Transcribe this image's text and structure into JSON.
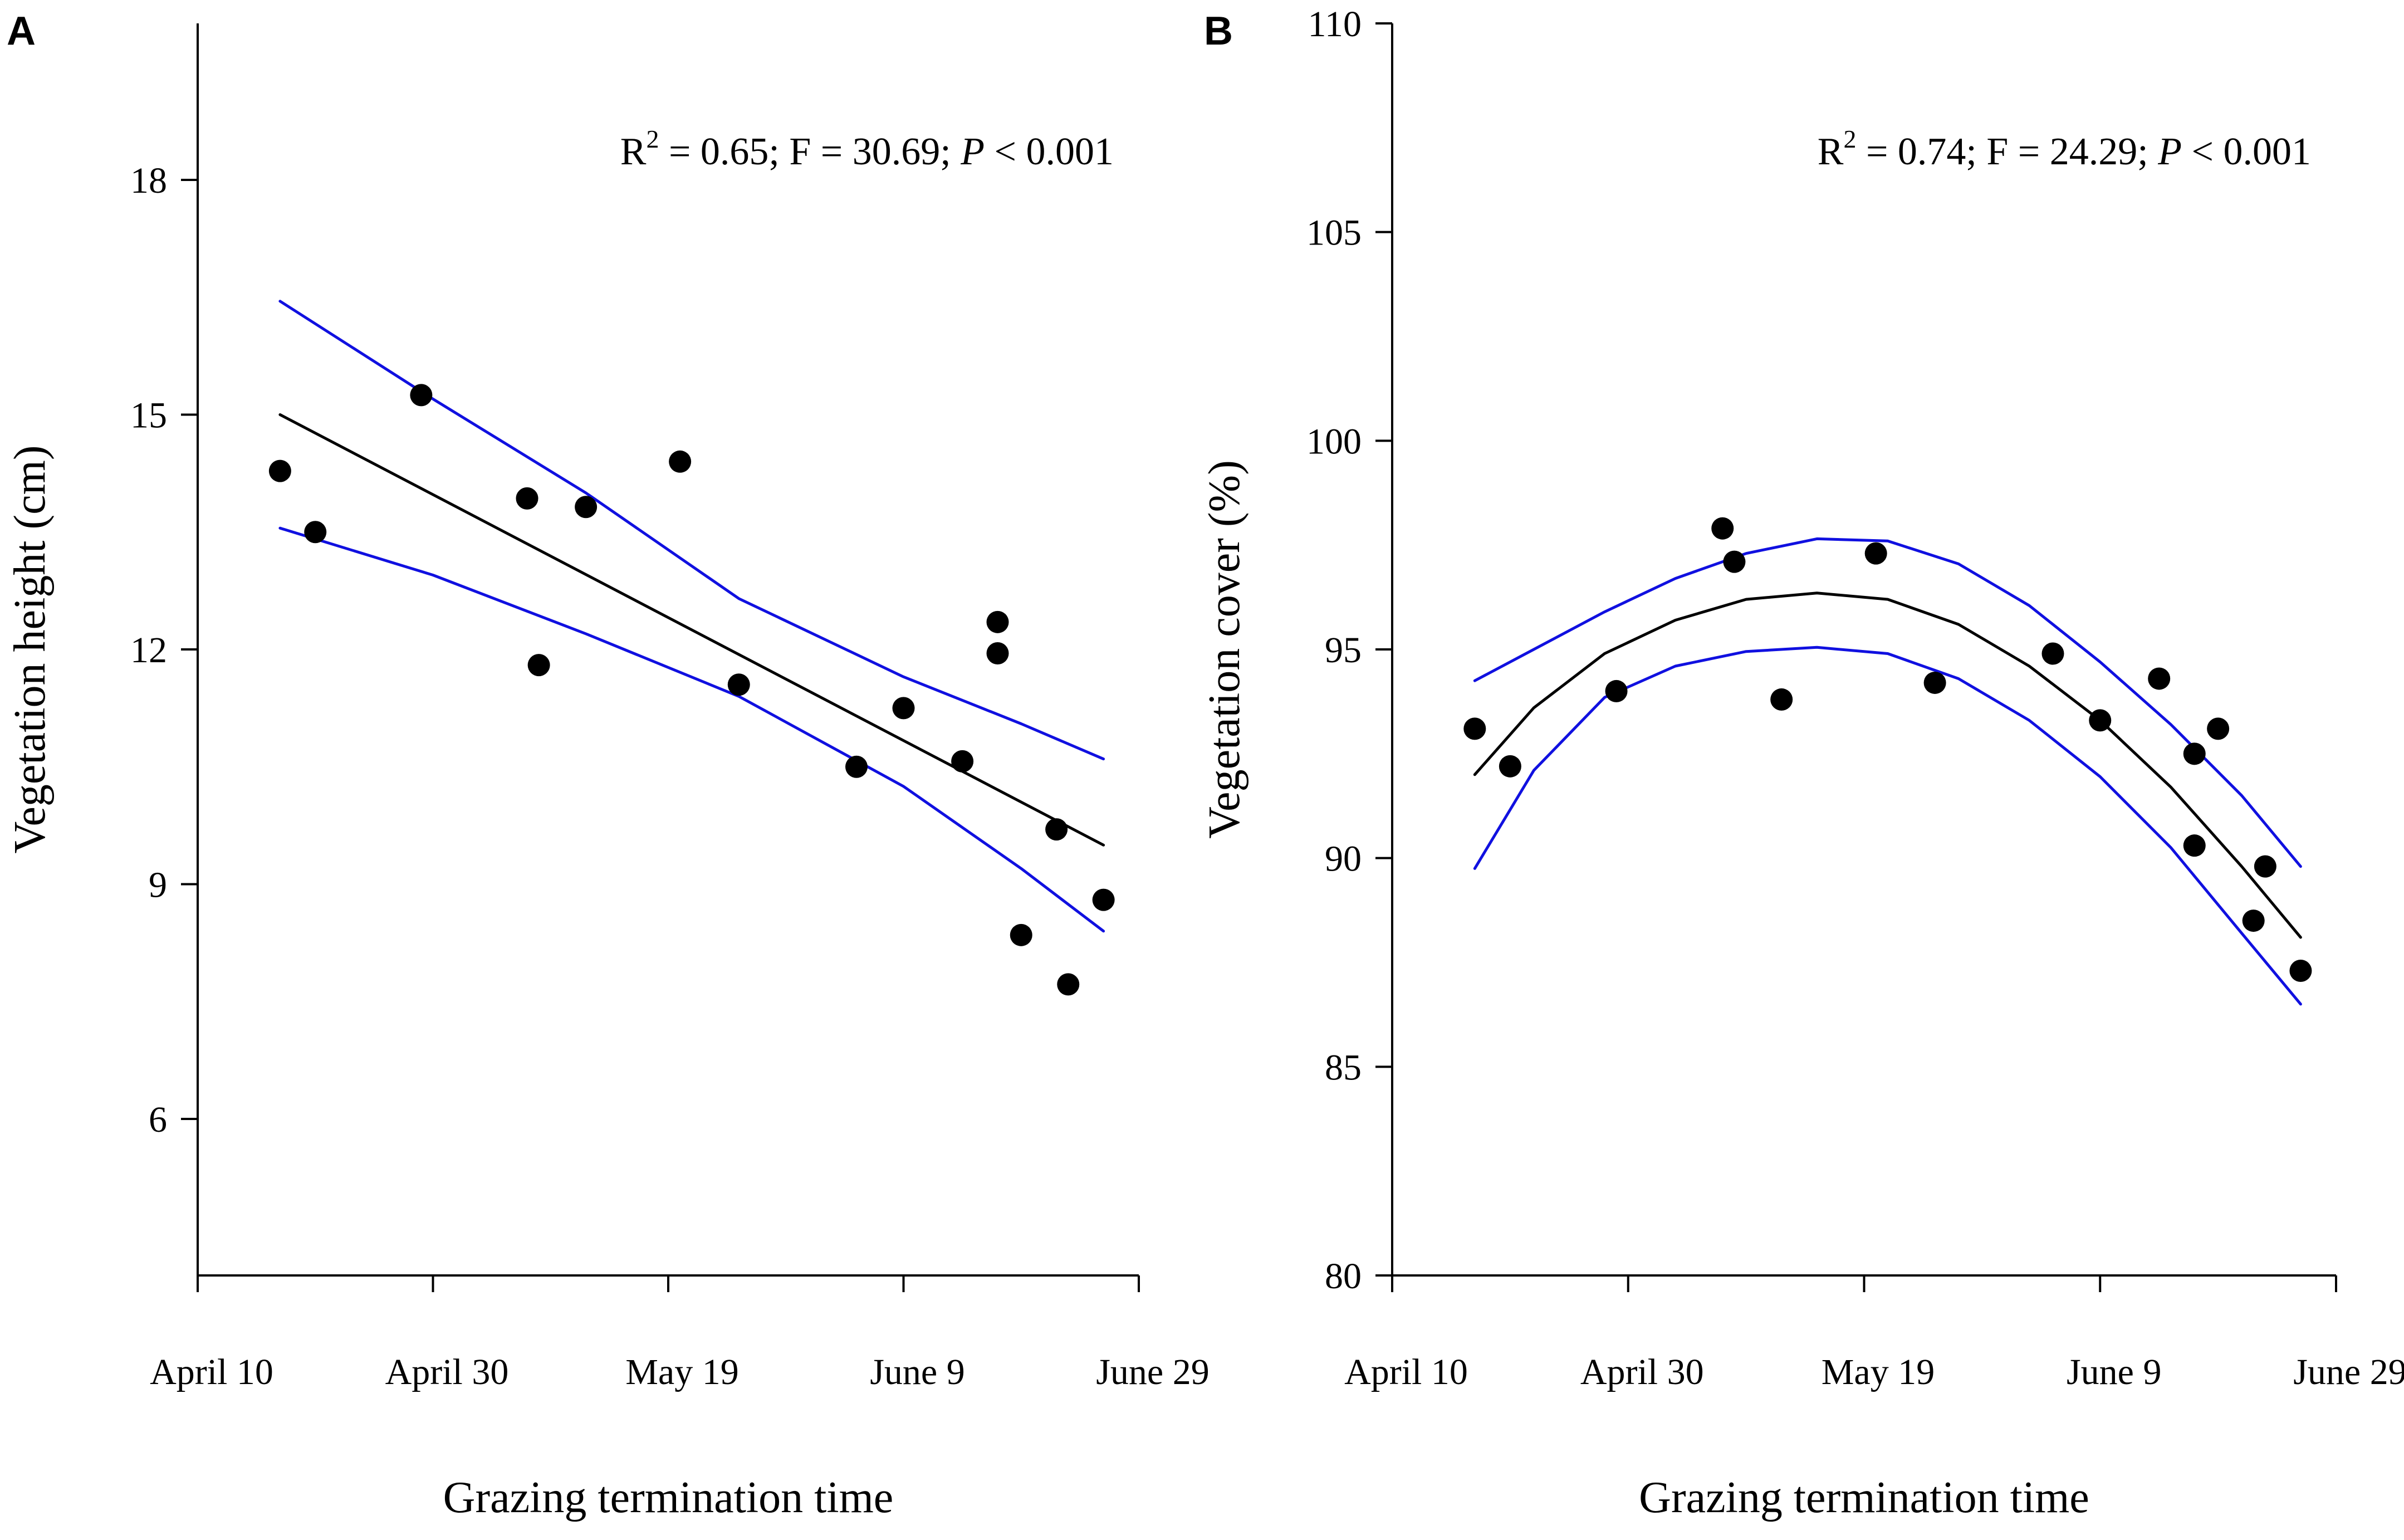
{
  "chart_data": [
    {
      "type": "scatter",
      "panel_label": "A",
      "xlabel": "Grazing termination time",
      "ylabel": "Vegetation height (cm)",
      "x_ticks": [
        {
          "label": "April 10",
          "value": 0
        },
        {
          "label": "April 30",
          "value": 20
        },
        {
          "label": "May 19",
          "value": 40
        },
        {
          "label": "June 9",
          "value": 60
        },
        {
          "label": "June 29",
          "value": 80
        }
      ],
      "xlim": [
        0,
        80
      ],
      "y_ticks": [
        6,
        9,
        12,
        15,
        18
      ],
      "ylim": [
        4,
        20
      ],
      "stats": {
        "r2_label": "R",
        "r2_sup": "2",
        "r2_rest": " = 0.65; F = 30.69; ",
        "p_label": "P",
        "p_rest": " < 0.001"
      },
      "points": [
        {
          "x": 7,
          "y": 14.28
        },
        {
          "x": 10,
          "y": 13.5
        },
        {
          "x": 19,
          "y": 15.25
        },
        {
          "x": 28,
          "y": 13.93
        },
        {
          "x": 29,
          "y": 11.8
        },
        {
          "x": 33,
          "y": 13.82
        },
        {
          "x": 41,
          "y": 14.4
        },
        {
          "x": 46,
          "y": 11.55
        },
        {
          "x": 56,
          "y": 10.5
        },
        {
          "x": 60,
          "y": 11.25
        },
        {
          "x": 65,
          "y": 10.57
        },
        {
          "x": 68,
          "y": 12.35
        },
        {
          "x": 68,
          "y": 11.95
        },
        {
          "x": 70,
          "y": 8.35
        },
        {
          "x": 73,
          "y": 9.7
        },
        {
          "x": 74,
          "y": 7.72
        },
        {
          "x": 77,
          "y": 8.8
        }
      ],
      "fit": {
        "x": [
          7,
          77
        ],
        "y": [
          15.0,
          9.5
        ]
      },
      "ci_upper": {
        "x": [
          7,
          20,
          33,
          46,
          60,
          70,
          77
        ],
        "y": [
          16.45,
          15.2,
          14.0,
          12.65,
          11.65,
          11.05,
          10.6
        ]
      },
      "ci_lower": {
        "x": [
          7,
          20,
          33,
          46,
          60,
          70,
          77
        ],
        "y": [
          13.55,
          12.95,
          12.2,
          11.4,
          10.25,
          9.2,
          8.4
        ]
      },
      "colors": {
        "fit": "#000000",
        "ci": "#1010e0",
        "points": "#000000"
      }
    },
    {
      "type": "scatter",
      "panel_label": "B",
      "xlabel": "Grazing termination time",
      "ylabel": "Vegetation cover (%)",
      "x_ticks": [
        {
          "label": "April 10",
          "value": 0
        },
        {
          "label": "April 30",
          "value": 20
        },
        {
          "label": "May 19",
          "value": 40
        },
        {
          "label": "June 9",
          "value": 60
        },
        {
          "label": "June 29",
          "value": 80
        }
      ],
      "xlim": [
        0,
        80
      ],
      "y_ticks": [
        80,
        85,
        90,
        95,
        100,
        105,
        110
      ],
      "ylim": [
        80,
        110
      ],
      "stats": {
        "r2_label": "R",
        "r2_sup": "2",
        "r2_rest": " = 0.74; F = 24.29; ",
        "p_label": "P",
        "p_rest": " < 0.001"
      },
      "points": [
        {
          "x": 7,
          "y": 93.1
        },
        {
          "x": 10,
          "y": 92.2
        },
        {
          "x": 19,
          "y": 94.0
        },
        {
          "x": 28,
          "y": 97.9
        },
        {
          "x": 29,
          "y": 97.1
        },
        {
          "x": 33,
          "y": 93.8
        },
        {
          "x": 41,
          "y": 97.3
        },
        {
          "x": 46,
          "y": 94.2
        },
        {
          "x": 56,
          "y": 94.9
        },
        {
          "x": 60,
          "y": 93.3
        },
        {
          "x": 65,
          "y": 94.3
        },
        {
          "x": 68,
          "y": 92.5
        },
        {
          "x": 68,
          "y": 90.3
        },
        {
          "x": 70,
          "y": 93.1
        },
        {
          "x": 73,
          "y": 88.5
        },
        {
          "x": 74,
          "y": 89.8
        },
        {
          "x": 77,
          "y": 87.3
        }
      ],
      "fit": {
        "x": [
          7,
          12,
          18,
          24,
          30,
          36,
          42,
          48,
          54,
          60,
          66,
          72,
          77
        ],
        "y": [
          92.0,
          93.6,
          94.9,
          95.7,
          96.2,
          96.35,
          96.2,
          95.6,
          94.6,
          93.3,
          91.7,
          89.8,
          88.1
        ]
      },
      "ci_upper": {
        "x": [
          7,
          12,
          18,
          24,
          30,
          36,
          42,
          48,
          54,
          60,
          66,
          72,
          77
        ],
        "y": [
          94.25,
          95.0,
          95.9,
          96.7,
          97.3,
          97.65,
          97.6,
          97.05,
          96.05,
          94.7,
          93.2,
          91.5,
          89.8
        ]
      },
      "ci_lower": {
        "x": [
          7,
          12,
          18,
          24,
          30,
          36,
          42,
          48,
          54,
          60,
          66,
          72,
          77
        ],
        "y": [
          89.75,
          92.1,
          93.85,
          94.6,
          94.95,
          95.05,
          94.9,
          94.3,
          93.3,
          91.95,
          90.25,
          88.2,
          86.5
        ]
      },
      "colors": {
        "fit": "#000000",
        "ci": "#1010e0",
        "points": "#000000"
      }
    }
  ]
}
